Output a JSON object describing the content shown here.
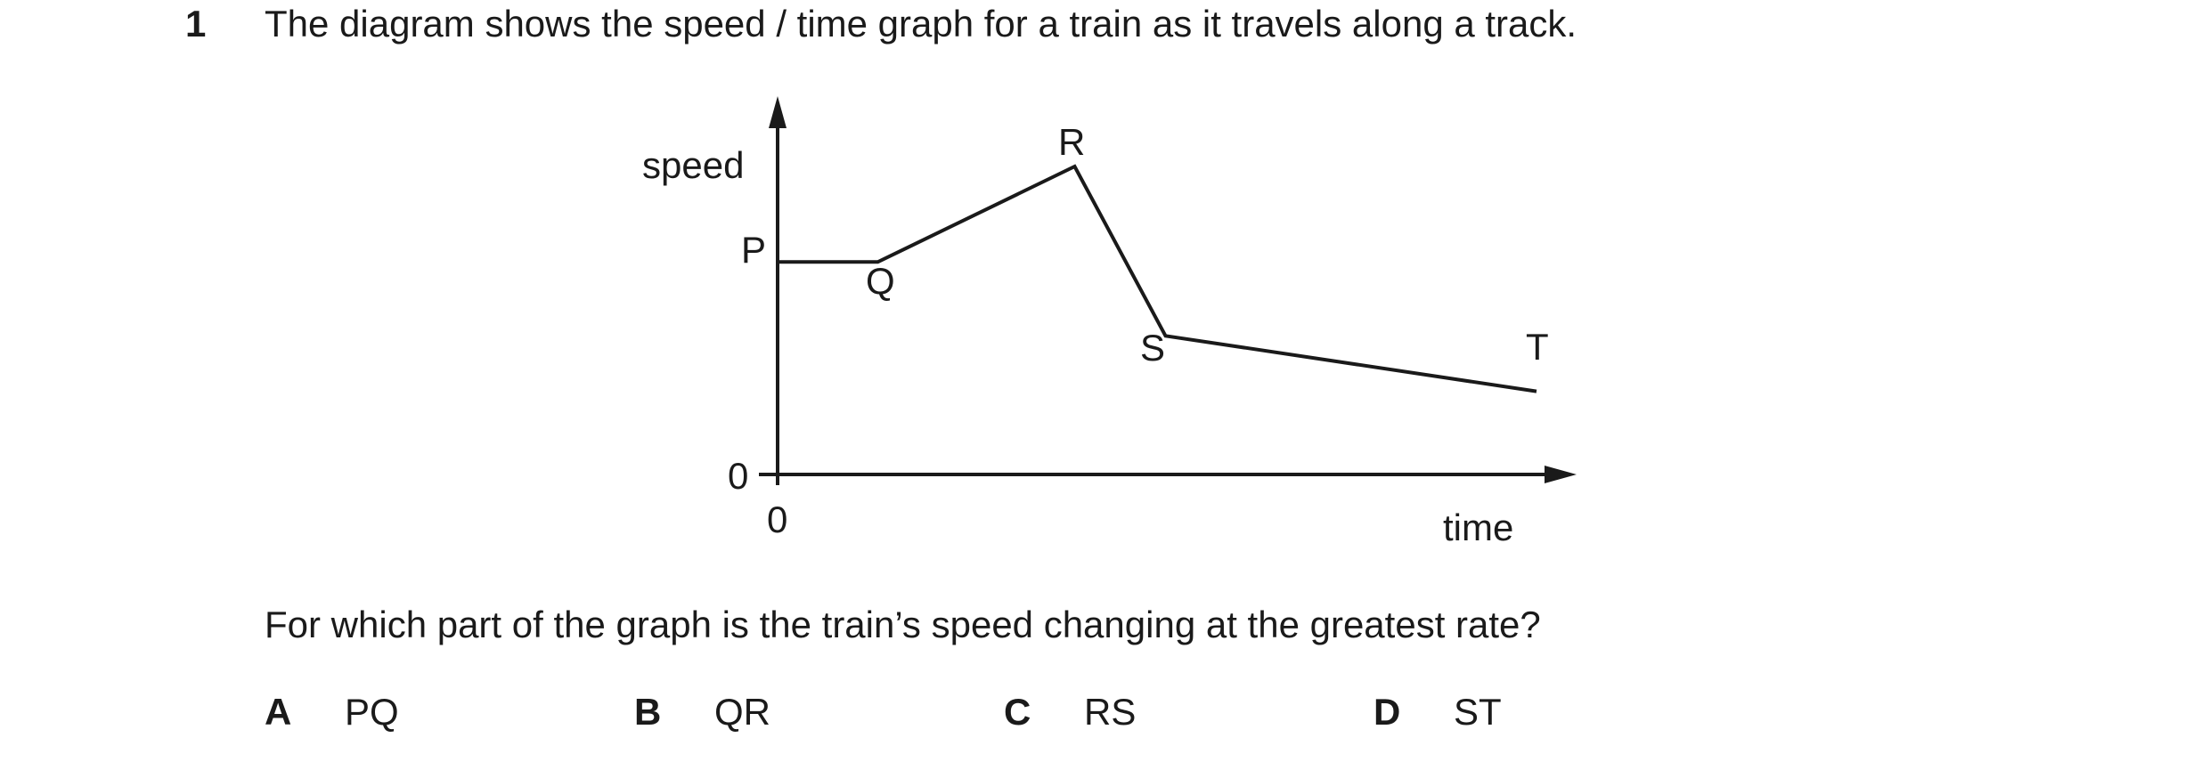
{
  "question": {
    "number": "1",
    "stem": "The diagram shows the speed / time graph for a train as it travels along a track.",
    "prompt": "For which part of the graph is the train’s speed changing at the greatest rate?"
  },
  "graph": {
    "y_axis_label": "speed",
    "x_axis_label": "time",
    "y_origin_label": "0",
    "x_origin_label": "0",
    "points": [
      {
        "label": "P",
        "t": 0,
        "v": 0.69
      },
      {
        "label": "Q",
        "t": 0.13,
        "v": 0.69
      },
      {
        "label": "R",
        "t": 0.39,
        "v": 1.0
      },
      {
        "label": "S",
        "t": 0.51,
        "v": 0.45
      },
      {
        "label": "T",
        "t": 1.0,
        "v": 0.27
      }
    ]
  },
  "options": [
    {
      "letter": "A",
      "text": "PQ"
    },
    {
      "letter": "B",
      "text": "QR"
    },
    {
      "letter": "C",
      "text": "RS"
    },
    {
      "letter": "D",
      "text": "ST"
    }
  ]
}
